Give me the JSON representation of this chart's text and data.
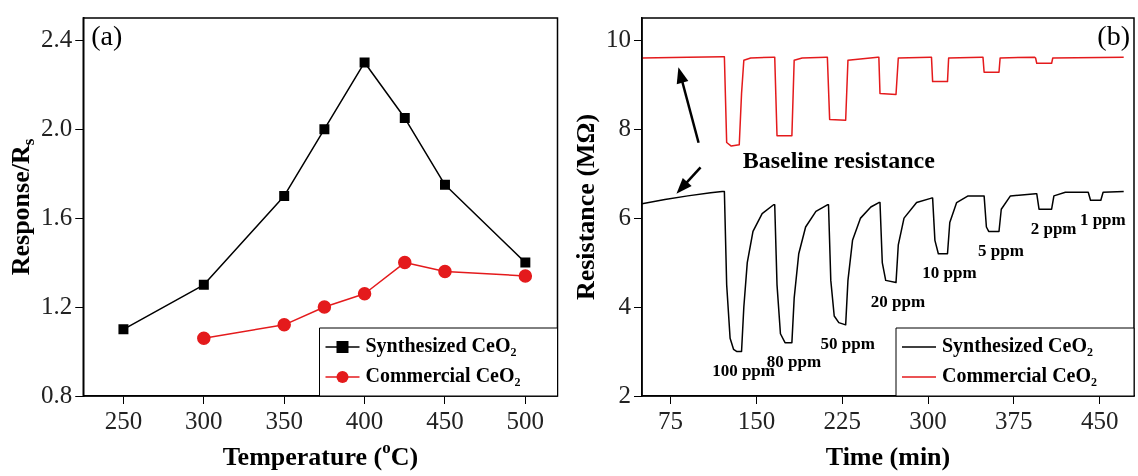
{
  "chart_data": [
    {
      "type": "line",
      "xlabel": "Temperature ($^{o}$C)",
      "ylabel": "Response/R$_{s}$",
      "xlim": [
        225,
        520
      ],
      "xticks": [
        250,
        300,
        350,
        400,
        450,
        500
      ],
      "ylim": [
        0.8,
        2.5
      ],
      "yticks": [
        0.8,
        1.2,
        1.6,
        {
          "value": 2,
          "label": "2.0"
        },
        2.4
      ],
      "grid": false,
      "legend": "bottom right",
      "annotations": [
        "(a)"
      ],
      "series": [
        {
          "name": "Synthesized CeO₂",
          "color": "#000000",
          "marker": "square",
          "x": [
            250,
            300,
            350,
            375,
            400,
            425,
            450,
            500
          ],
          "values": [
            1.1,
            1.3,
            1.7,
            2.0,
            2.3,
            2.05,
            1.75,
            1.4
          ]
        },
        {
          "name": "Commercial CeO₂",
          "color": "#e41a1c",
          "marker": "circle",
          "x": [
            300,
            350,
            375,
            400,
            425,
            450,
            500
          ],
          "values": [
            1.06,
            1.12,
            1.2,
            1.26,
            1.4,
            1.36,
            1.34
          ]
        }
      ]
    },
    {
      "type": "line",
      "xlabel": "Time (min)",
      "ylabel": "Resistance (MΩ)",
      "xlim": [
        50,
        480
      ],
      "xticks": [
        75,
        150,
        225,
        300,
        375,
        450
      ],
      "ylim": [
        2,
        10.5
      ],
      "yticks": [
        2,
        4,
        6,
        8,
        10
      ],
      "grid": false,
      "legend": "bottom right",
      "marker": "none",
      "annotations": [
        "(b)",
        "Baseline resistance",
        "100 ppm",
        "80 ppm",
        "50 ppm",
        "20 ppm",
        "10 ppm",
        "5 ppm",
        "2 ppm",
        "1 ppm"
      ],
      "series": [
        {
          "name": "Synthesized CeO₂",
          "color": "#000000",
          "x": [
            50,
            70,
            90,
            110,
            120,
            122,
            124,
            127,
            130,
            133,
            137,
            139,
            142,
            147,
            155,
            165,
            166,
            168,
            171,
            175,
            181,
            183,
            187,
            193,
            202,
            212,
            213,
            215,
            218,
            222,
            228,
            230,
            234,
            241,
            250,
            257,
            258,
            260,
            263,
            272,
            274,
            279,
            290,
            303,
            304,
            306,
            309,
            317,
            319,
            325,
            335,
            348,
            349,
            351,
            353,
            362,
            364,
            372,
            394,
            395,
            397,
            408,
            410,
            420,
            440,
            442,
            451,
            453,
            471
          ],
          "values": [
            6.32,
            6.42,
            6.5,
            6.57,
            6.6,
            6.6,
            4.5,
            3.3,
            3.05,
            3.0,
            3.0,
            4.0,
            5.0,
            5.7,
            6.1,
            6.3,
            6.3,
            4.5,
            3.4,
            3.2,
            3.2,
            4.2,
            5.2,
            5.8,
            6.15,
            6.3,
            6.3,
            4.6,
            3.8,
            3.65,
            3.6,
            4.6,
            5.5,
            6.0,
            6.25,
            6.35,
            6.35,
            5.0,
            4.6,
            4.55,
            5.4,
            6.0,
            6.35,
            6.45,
            6.45,
            5.5,
            5.2,
            5.2,
            5.9,
            6.35,
            6.5,
            6.5,
            6.5,
            5.8,
            5.7,
            5.7,
            6.2,
            6.5,
            6.55,
            6.55,
            6.2,
            6.2,
            6.5,
            6.58,
            6.58,
            6.4,
            6.4,
            6.58,
            6.6
          ]
        },
        {
          "name": "Commercial CeO₂",
          "color": "#e41a1c",
          "x": [
            50,
            90,
            121,
            122,
            124,
            128,
            135,
            137,
            139,
            145,
            165,
            166,
            168,
            181,
            183,
            190,
            211,
            212,
            214,
            228,
            230,
            256,
            257,
            258,
            272,
            274,
            302,
            303,
            304,
            317,
            318,
            347,
            348,
            349,
            362,
            363,
            393,
            394,
            395,
            408,
            409,
            471
          ],
          "values": [
            9.6,
            9.62,
            9.63,
            9.63,
            7.7,
            7.62,
            7.65,
            8.8,
            9.55,
            9.6,
            9.62,
            9.62,
            7.85,
            7.85,
            9.55,
            9.6,
            9.62,
            9.62,
            8.22,
            8.2,
            9.55,
            9.62,
            9.62,
            8.8,
            8.78,
            9.6,
            9.62,
            9.62,
            9.07,
            9.07,
            9.6,
            9.62,
            9.62,
            9.28,
            9.28,
            9.6,
            9.62,
            9.6,
            9.48,
            9.48,
            9.6,
            9.62
          ]
        }
      ]
    }
  ]
}
